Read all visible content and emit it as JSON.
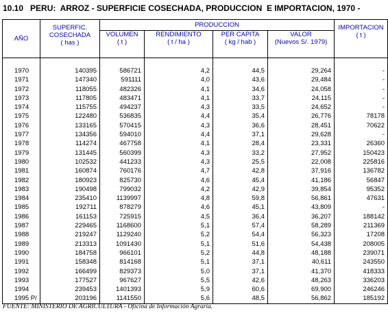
{
  "header": {
    "title": "10.10   PERU:  ARROZ - SUPERFICIE COSECHADA, PRODUCCION  E IMPORTACION, 1970 -"
  },
  "table": {
    "columns": {
      "year": "AÑO",
      "area": "SUPERFIC.\nCOSECHADA",
      "area_unit": "( has )",
      "production": "PRODUCCION",
      "volume": "VOLUMEN",
      "volume_unit": "( t )",
      "yield": "RENDIMIENTO",
      "yield_unit": "( t / ha )",
      "per_capita": "PER CAPITA",
      "per_capita_unit": "( kg / hab )",
      "value": "VALOR",
      "value_unit": "(Nuevos S/. 1979)",
      "imports": "IMPORTACION",
      "imports_unit": "( t )"
    },
    "rows": [
      [
        "1970",
        "140395",
        "586721",
        "4,2",
        "44,5",
        "29,264",
        "-"
      ],
      [
        "1971",
        "147340",
        "591111",
        "4,0",
        "43,6",
        "29,484",
        "-"
      ],
      [
        "1972",
        "118055",
        "482326",
        "4,1",
        "34,6",
        "24,058",
        "-"
      ],
      [
        "1973",
        "117805",
        "483471",
        "4,1",
        "33,7",
        "24,115",
        "-"
      ],
      [
        "1974",
        "115755",
        "494237",
        "4,3",
        "33,5",
        "24,652",
        "-"
      ],
      [
        "1975",
        "122480",
        "536835",
        "4,4",
        "35,4",
        "26,776",
        "78178"
      ],
      [
        "1976",
        "133165",
        "570415",
        "4,3",
        "36,6",
        "28,451",
        "70622"
      ],
      [
        "1977",
        "134356",
        "594010",
        "4,4",
        "37,1",
        "29,628",
        "-"
      ],
      [
        "1978",
        "114274",
        "467758",
        "4,1",
        "28,4",
        "23,331",
        "26360"
      ],
      [
        "1979",
        "131445",
        "560399",
        "4,3",
        "33,2",
        "27,952",
        "150423"
      ],
      [
        "1980",
        "102532",
        "441233",
        "4,3",
        "25,5",
        "22,008",
        "225816"
      ],
      [
        "1981",
        "160874",
        "760176",
        "4,7",
        "42,8",
        "37,916",
        "136782"
      ],
      [
        "1982",
        "180923",
        "825730",
        "4,6",
        "45,4",
        "41,186",
        "56847"
      ],
      [
        "1983",
        "190498",
        "799032",
        "4,2",
        "42,9",
        "39,854",
        "95352"
      ],
      [
        "1984",
        "235410",
        "1139997",
        "4,8",
        "59,8",
        "56,861",
        "47631"
      ],
      [
        "1985",
        "192711",
        "878279",
        "4,6",
        "45,1",
        "43,809",
        "-"
      ],
      [
        "1986",
        "161153",
        "725915",
        "4,5",
        "36,4",
        "36,207",
        "188142"
      ],
      [
        "1987",
        "229465",
        "1168600",
        "5,1",
        "57,4",
        "58,289",
        "211369"
      ],
      [
        "1988",
        "219247",
        "1129240",
        "5,2",
        "54,4",
        "56,323",
        "17208"
      ],
      [
        "1989",
        "213313",
        "1091430",
        "5,1",
        "51,6",
        "54,438",
        "208005"
      ],
      [
        "1990",
        "184758",
        "966101",
        "5,2",
        "44,8",
        "48,188",
        "239071"
      ],
      [
        "1991",
        "158348",
        "814168",
        "5,1",
        "37,1",
        "40,611",
        "243550"
      ],
      [
        "1992",
        "166499",
        "829373",
        "5,0",
        "37,1",
        "41,370",
        "418333"
      ],
      [
        "1993",
        "177527",
        "967627",
        "5,5",
        "42,6",
        "48,263",
        "336203"
      ],
      [
        "1994",
        "239453",
        "1401393",
        "5,9",
        "60,6",
        "69,900",
        "246246"
      ],
      [
        "1995 P/",
        "203196",
        "1141550",
        "5,6",
        "48,5",
        "56,862",
        "185192"
      ]
    ]
  },
  "footer": {
    "source": "FUENTE: MINISTERIO DE AGRICULTURA - Oficina de Información Agraria."
  }
}
